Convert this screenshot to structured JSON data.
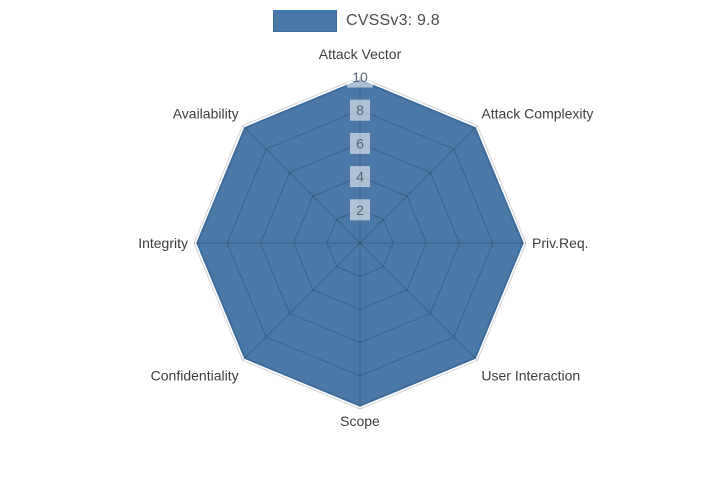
{
  "chart_data": {
    "type": "radar",
    "title": "",
    "legend_label": "CVSSv3: 9.8",
    "legend_position": "top-center",
    "categories": [
      "Attack Vector",
      "Attack Complexity",
      "Priv.Req.",
      "User Interaction",
      "Scope",
      "Confidentiality",
      "Integrity",
      "Availability"
    ],
    "series": [
      {
        "name": "CVSSv3: 9.8",
        "values": [
          9.8,
          9.8,
          9.8,
          9.8,
          9.8,
          9.8,
          9.8,
          9.8
        ],
        "fill_color": "#4b78a6",
        "line_color": "#3d6d9e"
      }
    ],
    "radial_ticks": [
      "2",
      "4",
      "6",
      "8",
      "10"
    ],
    "radial_range": [
      0,
      10
    ],
    "grid": true,
    "grid_color": "rgba(0,0,0,0.18)",
    "axis_label_color": "#3d3d3d",
    "tick_label_color": "#5a6674",
    "tick_box_color": "rgba(255,255,255,0.55)",
    "legend_text_color": "#4d4d4d",
    "legend_line_color": "#3f78b4",
    "legend_border_color": "#3e6a9c"
  }
}
